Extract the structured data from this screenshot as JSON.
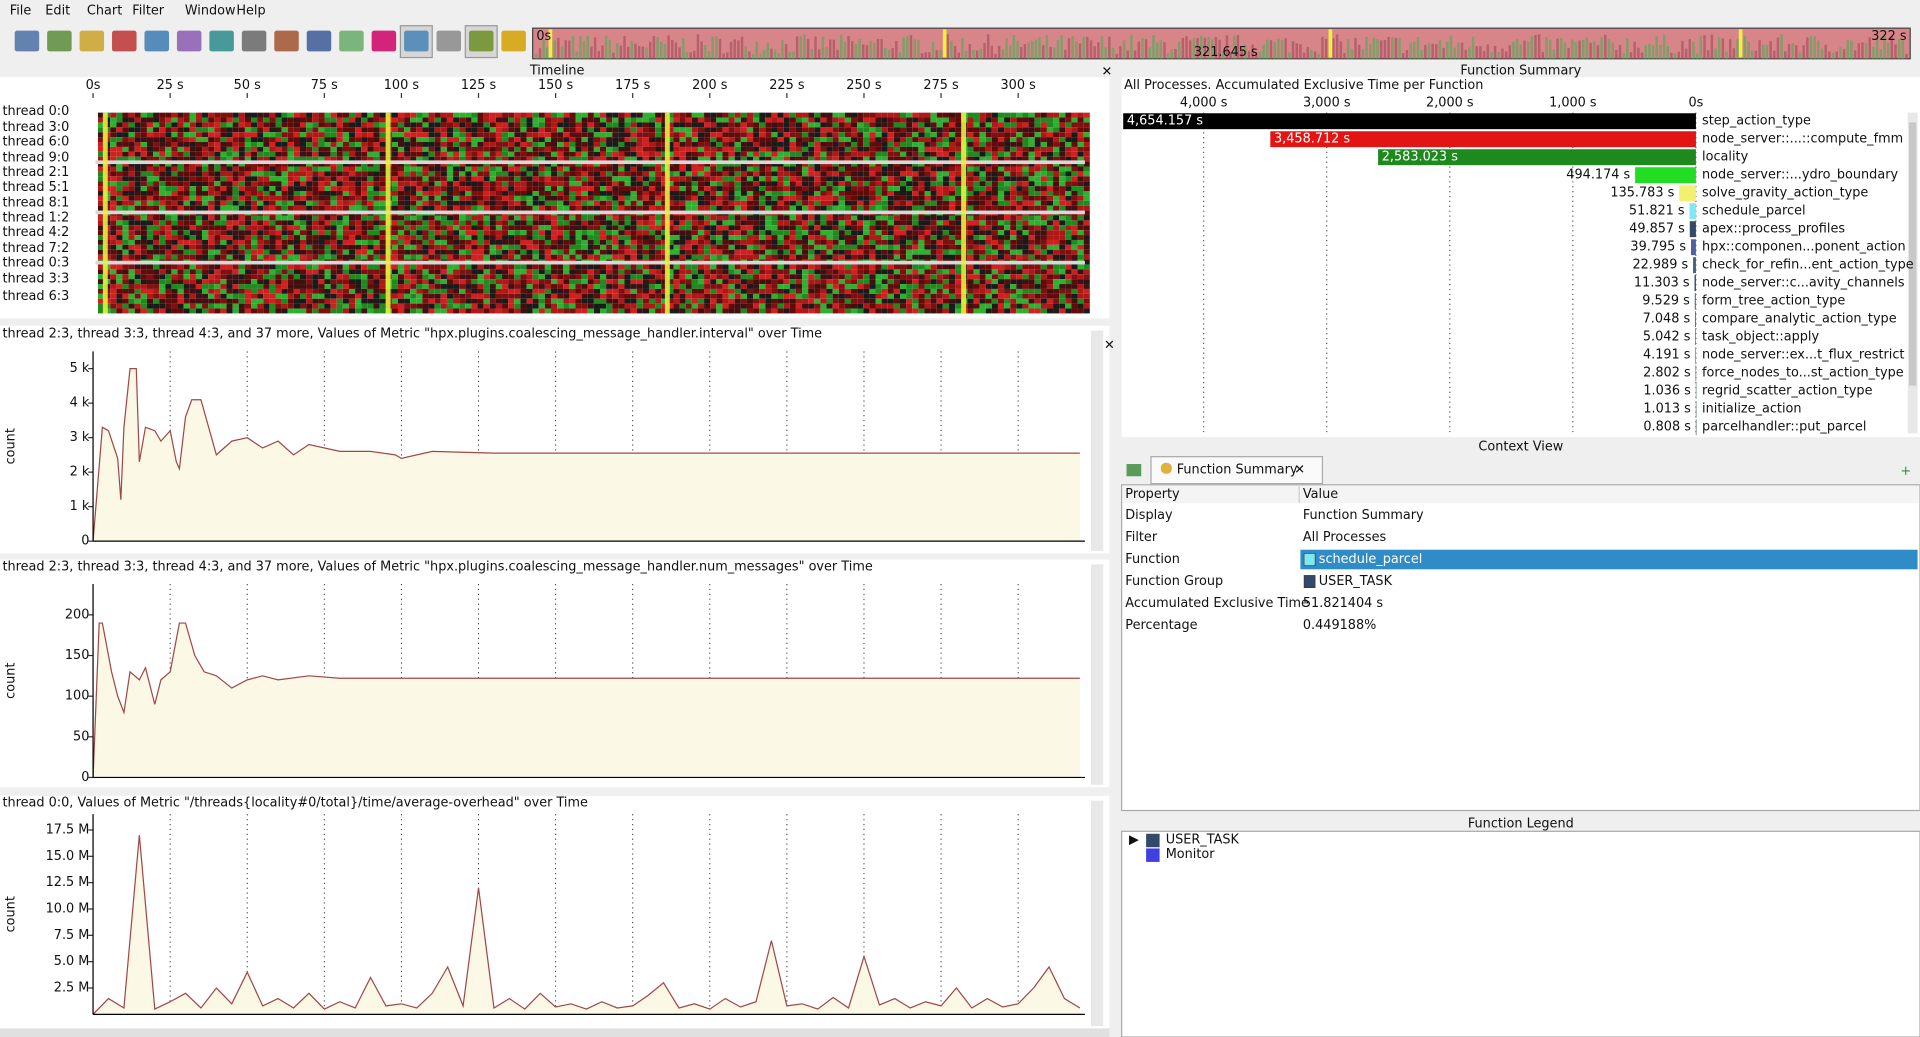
{
  "menu": [
    "File",
    "Edit",
    "Chart",
    "Filter",
    "Window",
    "Help"
  ],
  "overview": {
    "start": "0s",
    "cursor": "321.645 s",
    "end": "322 s"
  },
  "timeline": {
    "title": "Timeline",
    "xlim": [
      0,
      321.645
    ],
    "xticks": [
      {
        "value": 0,
        "label": "0s"
      },
      {
        "value": 25,
        "label": "25 s"
      },
      {
        "value": 50,
        "label": "50 s"
      },
      {
        "value": 75,
        "label": "75 s"
      },
      {
        "value": 100,
        "label": "100 s"
      },
      {
        "value": 125,
        "label": "125 s"
      },
      {
        "value": 150,
        "label": "150 s"
      },
      {
        "value": 175,
        "label": "175 s"
      },
      {
        "value": 200,
        "label": "200 s"
      },
      {
        "value": 225,
        "label": "225 s"
      },
      {
        "value": 250,
        "label": "250 s"
      },
      {
        "value": 275,
        "label": "275 s"
      },
      {
        "value": 300,
        "label": "300 s"
      }
    ],
    "threads": [
      "thread 0:0",
      "thread 3:0",
      "thread 6:0",
      "thread 9:0",
      "thread 2:1",
      "thread 5:1",
      "thread 8:1",
      "thread 1:2",
      "thread 4:2",
      "thread 7:2",
      "thread 0:3",
      "thread 3:3",
      "thread 6:3"
    ]
  },
  "charts": [
    {
      "type": "line",
      "title": "thread 2:3, thread 3:3, thread 4:3, and 37 more, Values of Metric \"hpx.plugins.coalescing_message_handler.interval\" over Time",
      "y_label": "count",
      "color": "#a04848",
      "fill": "#fcf8e6",
      "x": [
        0,
        3,
        5,
        8,
        9,
        10,
        12,
        14,
        15,
        17,
        20,
        22,
        25,
        27,
        28,
        30,
        32,
        35,
        40,
        45,
        50,
        55,
        60,
        65,
        70,
        80,
        90,
        98,
        100,
        110,
        130,
        150,
        200,
        250,
        300,
        320
      ],
      "values": [
        0,
        3300,
        3200,
        2400,
        1200,
        3300,
        5000,
        5000,
        2300,
        3300,
        3200,
        2900,
        3200,
        2300,
        2100,
        3600,
        4100,
        4100,
        2500,
        2900,
        3000,
        2700,
        2900,
        2500,
        2800,
        2600,
        2600,
        2500,
        2400,
        2600,
        2550,
        2550,
        2550,
        2550,
        2550,
        2550
      ],
      "ylim": [
        0,
        5500
      ],
      "yticks": [
        0,
        {
          "value": 1000,
          "label": "1 k"
        },
        {
          "value": 2000,
          "label": "2 k"
        },
        {
          "value": 3000,
          "label": "3 k"
        },
        {
          "value": 4000,
          "label": "4 k"
        },
        {
          "value": 5000,
          "label": "5 k"
        }
      ]
    },
    {
      "type": "line",
      "title": "thread 2:3, thread 3:3, thread 4:3, and 37 more, Values of Metric \"hpx.plugins.coalescing_message_handler.num_messages\" over Time",
      "y_label": "count",
      "color": "#a04848",
      "fill": "#fcf8e6",
      "x": [
        0,
        2,
        3,
        6,
        8,
        10,
        12,
        15,
        17,
        20,
        22,
        25,
        28,
        30,
        33,
        36,
        40,
        45,
        50,
        55,
        60,
        70,
        80,
        100,
        200,
        320
      ],
      "values": [
        0,
        190,
        190,
        130,
        100,
        80,
        130,
        120,
        135,
        90,
        120,
        130,
        190,
        190,
        150,
        130,
        125,
        110,
        120,
        125,
        120,
        125,
        122,
        122,
        122,
        122
      ],
      "ylim": [
        0,
        238
      ],
      "yticks": [
        0,
        50,
        100,
        150,
        200
      ]
    },
    {
      "type": "line",
      "title": "thread 0:0, Values of Metric \"/threads{locality#0/total}/time/average-overhead\" over Time",
      "y_label": "count",
      "color": "#a04848",
      "fill": "#fcf8e6",
      "x": [
        0,
        5,
        10,
        15,
        20,
        25,
        30,
        35,
        40,
        45,
        50,
        55,
        60,
        65,
        70,
        75,
        80,
        85,
        90,
        95,
        100,
        105,
        110,
        115,
        120,
        125,
        130,
        135,
        140,
        145,
        150,
        155,
        160,
        165,
        170,
        175,
        180,
        185,
        190,
        195,
        200,
        205,
        210,
        215,
        220,
        225,
        230,
        235,
        240,
        245,
        250,
        255,
        260,
        265,
        270,
        275,
        280,
        285,
        290,
        295,
        300,
        305,
        310,
        315,
        320
      ],
      "values": [
        0,
        1500000,
        600000,
        17000000,
        500000,
        1200000,
        2000000,
        600000,
        2500000,
        1000000,
        4000000,
        800000,
        1500000,
        600000,
        2000000,
        500000,
        1200000,
        600000,
        3500000,
        800000,
        1000000,
        600000,
        2000000,
        4500000,
        800000,
        12000000,
        600000,
        1500000,
        500000,
        2000000,
        700000,
        1000000,
        500000,
        1200000,
        600000,
        800000,
        1800000,
        3000000,
        600000,
        1000000,
        500000,
        1500000,
        700000,
        1200000,
        7000000,
        800000,
        1000000,
        500000,
        1600000,
        600000,
        5500000,
        900000,
        1500000,
        600000,
        1200000,
        800000,
        2500000,
        600000,
        1500000,
        700000,
        1000000,
        2500000,
        4500000,
        1500000,
        600000
      ],
      "ylim": [
        0,
        19000000
      ],
      "yticks": [
        {
          "value": 2500000,
          "label": "2.5 M"
        },
        {
          "value": 5000000,
          "label": "5.0 M"
        },
        {
          "value": 7500000,
          "label": "7.5 M"
        },
        {
          "value": 10000000,
          "label": "10.0 M"
        },
        {
          "value": 12500000,
          "label": "12.5 M"
        },
        {
          "value": 15000000,
          "label": "15.0 M"
        },
        {
          "value": 17500000,
          "label": "17.5 M"
        }
      ]
    }
  ],
  "function_summary": {
    "title": "Function Summary",
    "subtitle": "All Processes. Accumulated Exclusive Time per Function",
    "type": "bar",
    "categories": [
      "step_action_type",
      "node_server::...::compute_fmm",
      "locality",
      "node_server::...ydro_boundary",
      "solve_gravity_action_type",
      "schedule_parcel",
      "apex::process_profiles",
      "hpx::componen...ponent_action",
      "check_for_refin...ent_action_type",
      "node_server::c...avity_channels",
      "form_tree_action_type",
      "compare_analytic_action_type",
      "task_object::apply",
      "node_server::ex...t_flux_restrict",
      "force_nodes_to...st_action_type",
      "regrid_scatter_action_type",
      "initialize_action",
      "parcelhandler::put_parcel"
    ],
    "values": [
      4654.157,
      3458.712,
      2583.023,
      494.174,
      135.783,
      51.821,
      49.857,
      39.795,
      22.989,
      11.303,
      9.529,
      7.048,
      5.042,
      4.191,
      2.802,
      1.036,
      1.013,
      0.808
    ],
    "value_labels": [
      "4,654.157 s",
      "3,458.712 s",
      "2,583.023 s",
      "494.174 s",
      "135.783 s",
      "51.821 s",
      "49.857 s",
      "39.795 s",
      "22.989 s",
      "11.303 s",
      "9.529 s",
      "7.048 s",
      "5.042 s",
      "4.191 s",
      "2.802 s",
      "1.036 s",
      "1.013 s",
      "0.808 s"
    ],
    "colors": [
      "#000000",
      "#e31414",
      "#1e8a1e",
      "#22dd22",
      "#f2f070",
      "#80e8f0",
      "#34486a",
      "#5060a0",
      "#406080",
      "#304878",
      "#607090",
      "#5a5aa0",
      "#405870",
      "#506080",
      "#405080",
      "#607080",
      "#506070",
      "#405060"
    ],
    "xlim": [
      4657,
      0
    ],
    "xticks": [
      {
        "value": 4000,
        "label": "4,000 s"
      },
      {
        "value": 3000,
        "label": "3,000 s"
      },
      {
        "value": 2000,
        "label": "2,000 s"
      },
      {
        "value": 1000,
        "label": "1,000 s"
      },
      {
        "value": 0,
        "label": "0s"
      }
    ]
  },
  "context_view": {
    "title": "Context View",
    "tab": "Function Summary",
    "header": [
      "Property",
      "Value"
    ],
    "rows": [
      [
        "Display",
        "Function Summary"
      ],
      [
        "Filter",
        "All Processes"
      ],
      [
        "Function",
        "schedule_parcel"
      ],
      [
        "Function Group",
        "USER_TASK"
      ],
      [
        "Accumulated Exclusive Time",
        "51.821404 s"
      ],
      [
        "Percentage",
        "0.449188%"
      ]
    ]
  },
  "legend": {
    "title": "Function Legend",
    "items": [
      "USER_TASK",
      "Monitor"
    ]
  }
}
